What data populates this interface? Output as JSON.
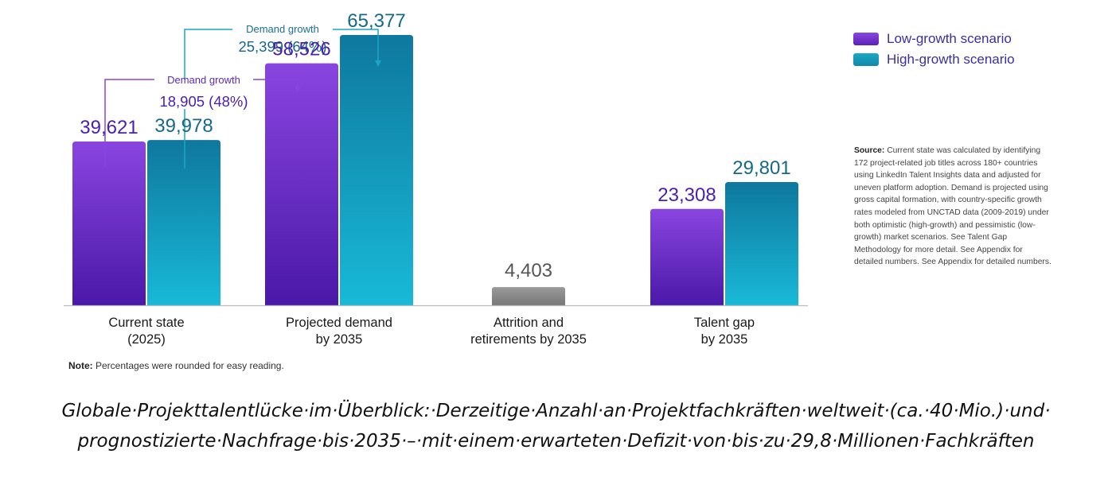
{
  "chart_data": {
    "type": "bar",
    "categories": [
      "Current state\n(2025)",
      "Projected demand\nby 2035",
      "Attrition and\nretirements by 2035",
      "Talent gap\nby 2035"
    ],
    "series": [
      {
        "name": "Low-growth scenario",
        "values": [
          39621,
          58526,
          null,
          23308
        ]
      },
      {
        "name": "High-growth scenario",
        "values": [
          39978,
          65377,
          null,
          29801
        ]
      }
    ],
    "single_values": [
      null,
      null,
      4403,
      null
    ],
    "value_labels": {
      "low": [
        "39,621",
        "58,526",
        "",
        "23,308"
      ],
      "high": [
        "39,978",
        "65,377",
        "",
        "29,801"
      ],
      "single": [
        "",
        "",
        "4,403",
        ""
      ]
    },
    "ylim": [
      0,
      70000
    ],
    "grid": false,
    "legend_position": "top-right",
    "annotations": [
      {
        "label": "Demand growth",
        "value": "18,905 (48%)",
        "series": "Low-growth scenario"
      },
      {
        "label": "Demand growth",
        "value": "25,399 (64%)",
        "series": "High-growth scenario"
      }
    ],
    "colors": {
      "low": "#7a35d8",
      "high": "#1493b8",
      "single": "#8c8c8c"
    }
  },
  "legend": {
    "low": "Low-growth scenario",
    "high": "High-growth scenario"
  },
  "source": {
    "label": "Source:",
    "text": " Current state was calculated by identifying 172 project-related job titles across 180+ countries using LinkedIn Talent Insights data and adjusted for uneven platform adoption. Demand is projected using gross capital formation, with country-specific growth rates modeled from UNCTAD data (2009-2019) under both optimistic (high-growth) and pessimistic (low-growth) market scenarios. See Talent Gap Methodology for more detail. See Appendix for detailed numbers. See Appendix for detailed numbers."
  },
  "note": {
    "label": "Note:",
    "text": " Percentages were rounded for easy reading."
  },
  "caption": {
    "line1": "Globale·Projekttalentlücke·im·Überblick:·Derzeitige·Anzahl·an·Projektfachkräften·weltweit·(ca.·40·Mio.)·und·",
    "line2": "prognostizierte·Nachfrage·bis·2035·–·mit·einem·erwarteten·Defizit·von·bis·zu·29,8·Millionen·Fachkräften"
  }
}
